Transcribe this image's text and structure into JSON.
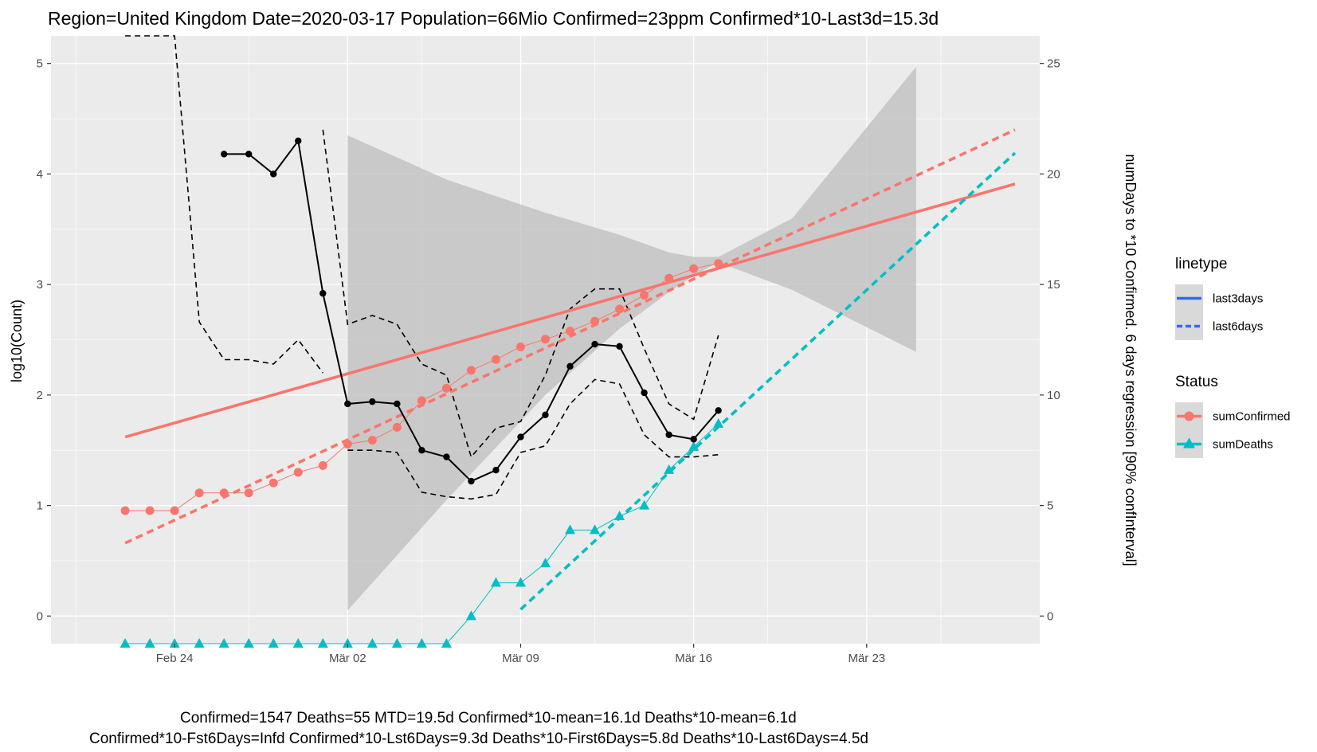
{
  "chart_data": {
    "type": "line",
    "title": "Region=United Kingdom Date=2020-03-17  Population=66Mio Confirmed=23ppm  Confirmed*10-Last3d=15.3d",
    "footer_lines": [
      "Confirmed=1547 Deaths=55  MTD=19.5d   Confirmed*10-mean=16.1d  Deaths*10-mean=6.1d",
      "Confirmed*10-Fst6Days=Infd  Confirmed*10-Lst6Days=9.3d    Deaths*10-First6Days=5.8d  Deaths*10-Last6Days=4.5d"
    ],
    "ylabel": "log10(Count)",
    "y2label": "numDays to *10 Confirmed. 6 days regression [90% confInterval]",
    "x_range": [
      "2020-02-19",
      "2020-03-30"
    ],
    "ylim": [
      -0.25,
      5.25
    ],
    "y2lim": [
      -1.25,
      26.25
    ],
    "x_ticks": [
      {
        "date": "2020-02-24",
        "label": "Feb 24"
      },
      {
        "date": "2020-03-02",
        "label": "Mär 02"
      },
      {
        "date": "2020-03-09",
        "label": "Mär 09"
      },
      {
        "date": "2020-03-16",
        "label": "Mär 16"
      },
      {
        "date": "2020-03-23",
        "label": "Mär 23"
      }
    ],
    "y_ticks": [
      "0",
      "1",
      "2",
      "3",
      "4",
      "5"
    ],
    "y2_ticks": [
      "0",
      "5",
      "10",
      "15",
      "20",
      "25"
    ],
    "grid": true,
    "colors": {
      "panel": "#ebebeb",
      "grid": "#ffffff",
      "confirmed": "#f8766d",
      "deaths": "#00bfc4",
      "days": "#000000",
      "ribbon": "#bdbdbd",
      "legend_line": "#3366ff"
    },
    "series": [
      {
        "name": "sumConfirmed",
        "axis": "left",
        "marker": "circle",
        "dates": [
          "2020-02-22",
          "2020-02-23",
          "2020-02-24",
          "2020-02-25",
          "2020-02-26",
          "2020-02-27",
          "2020-02-28",
          "2020-02-29",
          "2020-03-01",
          "2020-03-02",
          "2020-03-03",
          "2020-03-04",
          "2020-03-05",
          "2020-03-06",
          "2020-03-07",
          "2020-03-08",
          "2020-03-09",
          "2020-03-10",
          "2020-03-11",
          "2020-03-12",
          "2020-03-13",
          "2020-03-14",
          "2020-03-15",
          "2020-03-16",
          "2020-03-17"
        ],
        "values": [
          0.954,
          0.954,
          0.954,
          1.114,
          1.114,
          1.114,
          1.204,
          1.301,
          1.362,
          1.556,
          1.591,
          1.708,
          1.949,
          2.061,
          2.223,
          2.322,
          2.435,
          2.505,
          2.578,
          2.668,
          2.778,
          2.904,
          3.057,
          3.143,
          3.19
        ]
      },
      {
        "name": "sumDeaths",
        "axis": "left",
        "marker": "triangle",
        "dates": [
          "2020-02-22",
          "2020-02-23",
          "2020-02-24",
          "2020-02-25",
          "2020-02-26",
          "2020-02-27",
          "2020-02-28",
          "2020-02-29",
          "2020-03-01",
          "2020-03-02",
          "2020-03-03",
          "2020-03-04",
          "2020-03-05",
          "2020-03-06",
          "2020-03-07",
          "2020-03-08",
          "2020-03-09",
          "2020-03-10",
          "2020-03-11",
          "2020-03-12",
          "2020-03-13",
          "2020-03-14",
          "2020-03-15",
          "2020-03-16",
          "2020-03-17"
        ],
        "values": [
          -0.25,
          -0.25,
          -0.25,
          -0.25,
          -0.25,
          -0.25,
          -0.25,
          -0.25,
          -0.25,
          -0.25,
          -0.25,
          -0.25,
          -0.25,
          -0.25,
          0,
          0.301,
          0.301,
          0.477,
          0.778,
          0.778,
          0.903,
          1.0,
          1.322,
          1.531,
          1.74
        ]
      },
      {
        "name": "numDays",
        "axis": "right",
        "marker": "point",
        "dates": [
          "2020-02-26",
          "2020-02-27",
          "2020-02-28",
          "2020-02-29",
          "2020-03-01",
          "2020-03-02",
          "2020-03-03",
          "2020-03-04",
          "2020-03-05",
          "2020-03-06",
          "2020-03-07",
          "2020-03-08",
          "2020-03-09",
          "2020-03-10",
          "2020-03-11",
          "2020-03-12",
          "2020-03-13",
          "2020-03-14",
          "2020-03-15",
          "2020-03-16",
          "2020-03-17"
        ],
        "values": [
          20.9,
          20.9,
          20.0,
          21.5,
          14.6,
          9.6,
          9.7,
          9.6,
          7.5,
          7.2,
          6.1,
          6.6,
          8.1,
          9.1,
          11.3,
          12.3,
          12.2,
          10.1,
          8.2,
          8.0,
          9.3
        ]
      },
      {
        "name": "numDays upper",
        "axis": "right",
        "dates": [
          "2020-02-22",
          "2020-02-23",
          "2020-02-24",
          "2020-02-25",
          "2020-02-26",
          "2020-02-27",
          "2020-02-28",
          "2020-02-29",
          "2020-03-01"
        ],
        "values": [
          26.25,
          26.25,
          26.25,
          13.3,
          11.6,
          11.6,
          11.4,
          12.5,
          11.0
        ]
      },
      {
        "name": "numDays upper (2)",
        "axis": "right",
        "dates": [
          "2020-03-01",
          "2020-03-02",
          "2020-03-03",
          "2020-03-04",
          "2020-03-05",
          "2020-03-06",
          "2020-03-07",
          "2020-03-08",
          "2020-03-09",
          "2020-03-10",
          "2020-03-11",
          "2020-03-12",
          "2020-03-13",
          "2020-03-14",
          "2020-03-15",
          "2020-03-16",
          "2020-03-17"
        ],
        "values": [
          22.0,
          13.2,
          13.6,
          13.2,
          11.4,
          10.9,
          7.2,
          8.5,
          8.8,
          10.9,
          13.9,
          14.8,
          14.8,
          12.1,
          9.6,
          8.9,
          12.7
        ]
      },
      {
        "name": "numDays lower",
        "axis": "right",
        "dates": [
          "2020-03-02",
          "2020-03-03",
          "2020-03-04",
          "2020-03-05",
          "2020-03-06",
          "2020-03-07",
          "2020-03-08",
          "2020-03-09",
          "2020-03-10",
          "2020-03-11",
          "2020-03-12",
          "2020-03-13",
          "2020-03-14",
          "2020-03-15",
          "2020-03-16",
          "2020-03-17"
        ],
        "values": [
          7.5,
          7.5,
          7.4,
          5.6,
          5.4,
          5.3,
          5.5,
          7.4,
          7.7,
          9.6,
          10.7,
          10.5,
          8.2,
          7.2,
          7.2,
          7.3
        ]
      }
    ],
    "regressions": [
      {
        "legend": "last3days",
        "status": "sumConfirmed",
        "dashed": false,
        "x": [
          "2020-02-22",
          "2020-03-29"
        ],
        "y": [
          1.62,
          3.91
        ]
      },
      {
        "legend": "last6days",
        "status": "sumConfirmed",
        "dashed": true,
        "x": [
          "2020-02-22",
          "2020-03-29"
        ],
        "y": [
          0.66,
          4.4
        ]
      },
      {
        "legend": "last6days",
        "status": "sumDeaths",
        "dashed": true,
        "x": [
          "2020-03-09",
          "2020-03-29"
        ],
        "y": [
          0.06,
          4.19
        ]
      }
    ],
    "ribbon": {
      "x": [
        "2020-03-02",
        "2020-03-06",
        "2020-03-10",
        "2020-03-13",
        "2020-03-15",
        "2020-03-16",
        "2020-03-17",
        "2020-03-20",
        "2020-03-25"
      ],
      "upper": [
        4.35,
        3.95,
        3.65,
        3.45,
        3.29,
        3.25,
        3.25,
        3.6,
        4.97
      ],
      "lower": [
        0.05,
        1.05,
        2.0,
        2.6,
        2.93,
        3.08,
        3.2,
        2.95,
        2.39
      ]
    },
    "legend": {
      "position": "right",
      "groups": [
        {
          "title": "linetype",
          "items": [
            {
              "label": "last3days",
              "style": "solid"
            },
            {
              "label": "last6days",
              "style": "dashed"
            }
          ]
        },
        {
          "title": "Status",
          "items": [
            {
              "label": "sumConfirmed",
              "marker": "circle"
            },
            {
              "label": "sumDeaths",
              "marker": "triangle"
            }
          ]
        }
      ]
    }
  }
}
